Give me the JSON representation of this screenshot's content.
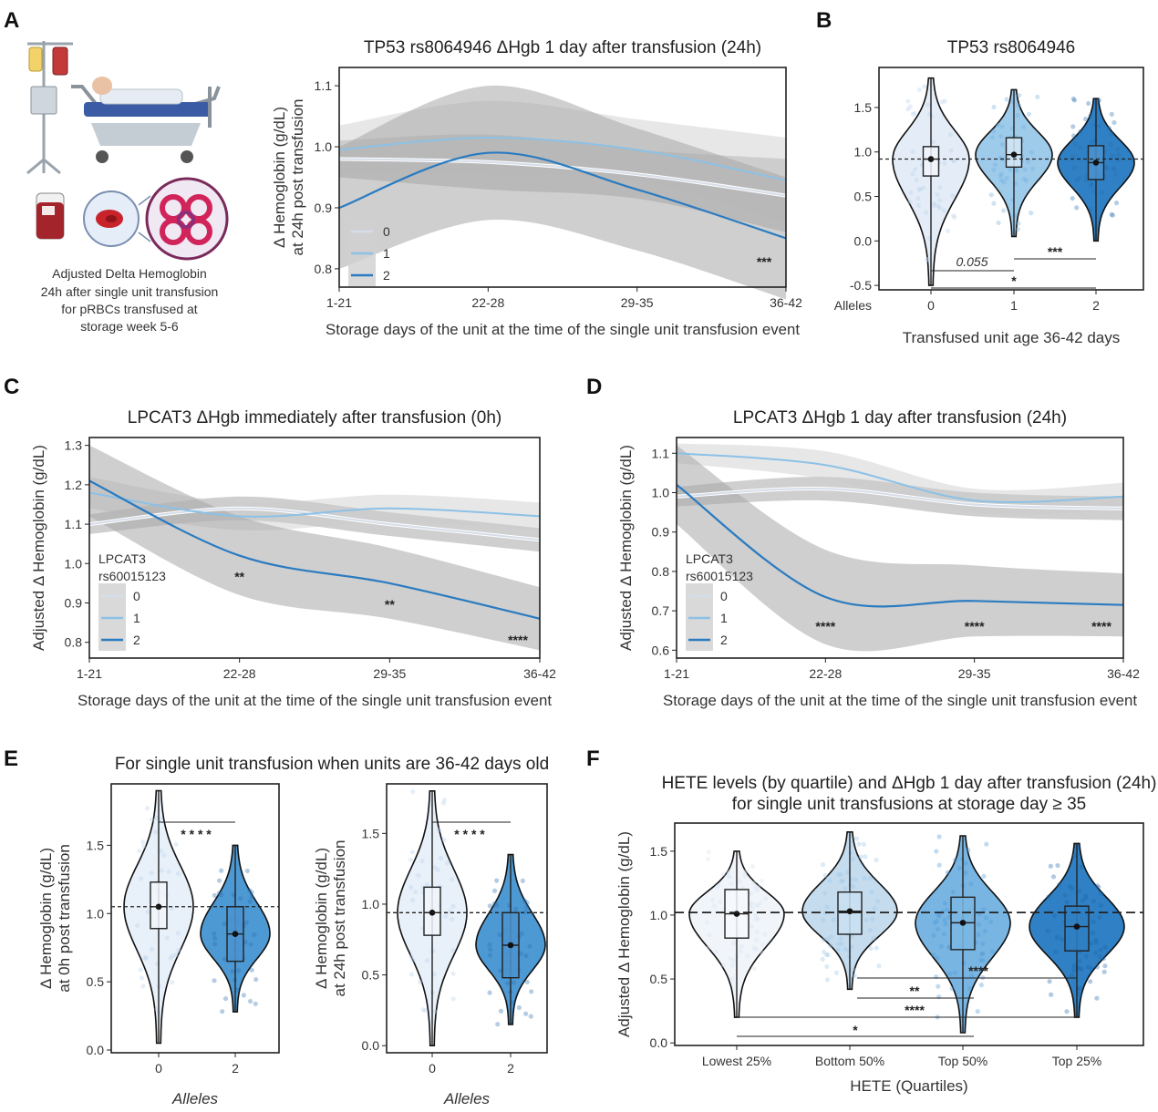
{
  "colors": {
    "allele0": "#d5dde8",
    "allele1": "#8cc1e6",
    "allele2": "#2a7bc0",
    "band": "#a8a8a8",
    "q1": "#eef3f9",
    "q2": "#c2dbef",
    "q3": "#6fb0e0",
    "q4": "#2a7bc0"
  },
  "panel_letters": {
    "A": "A",
    "B": "B",
    "C": "C",
    "D": "D",
    "E": "E",
    "F": "F"
  },
  "illustration": {
    "caption": [
      "Adjusted Delta Hemoglobin",
      "24h after single unit transfusion",
      "for pRBCs transfused at",
      "storage week 5-6"
    ],
    "icons": [
      "iv-bag-icon",
      "hospital-bed-icon",
      "blood-bag-icon",
      "red-blood-cell-icon"
    ]
  },
  "chart_data": [
    {
      "id": "A",
      "type": "line",
      "title": "TP53 rs8064946 ΔHgb 1 day after transfusion (24h)",
      "ylabel_lines": [
        "Δ Hemoglobin (g/dL)",
        "at 24h post transfusion"
      ],
      "xlabel": "Storage days of the unit at the time of the single unit transfusion event",
      "categories": [
        "1-21",
        "22-28",
        "29-35",
        "36-42"
      ],
      "ylim": [
        0.77,
        1.13
      ],
      "yticks": [
        "0.8",
        "0.9",
        "1.0",
        "1.1"
      ],
      "series": [
        {
          "name": "0",
          "values": [
            0.98,
            0.975,
            0.955,
            0.92
          ],
          "band": [
            0.03,
            0.045,
            0.04,
            0.06
          ]
        },
        {
          "name": "1",
          "values": [
            0.995,
            1.015,
            0.995,
            0.945
          ],
          "band": [
            0.04,
            0.06,
            0.05,
            0.07
          ]
        },
        {
          "name": "2",
          "values": [
            0.9,
            0.99,
            0.93,
            0.85
          ],
          "band": [
            0.1,
            0.11,
            0.1,
            0.1
          ]
        }
      ],
      "annotations": [
        {
          "text": "***",
          "at": "36-42"
        }
      ]
    },
    {
      "id": "B",
      "type": "violin",
      "title": "TP53 rs8064946",
      "xlabel": "Transfused unit age 36-42 days",
      "xprefix": "Alleles",
      "categories": [
        "0",
        "1",
        "2"
      ],
      "ylim": [
        -0.55,
        1.95
      ],
      "yticks": [
        "-0.5",
        "0.0",
        "0.5",
        "1.0",
        "1.5"
      ],
      "refline": 0.92,
      "groups": [
        {
          "name": "0",
          "median": 0.92,
          "q1": 0.73,
          "q3": 1.06,
          "lo": -0.5,
          "hi": 1.83
        },
        {
          "name": "1",
          "median": 0.97,
          "q1": 0.83,
          "q3": 1.16,
          "lo": 0.05,
          "hi": 1.7
        },
        {
          "name": "2",
          "median": 0.88,
          "q1": 0.69,
          "q3": 1.07,
          "lo": 0.0,
          "hi": 1.6
        }
      ],
      "significance": [
        {
          "text": "0.055",
          "from": "0",
          "to": "1"
        },
        {
          "text": "***",
          "from": "1",
          "to": "2"
        },
        {
          "text": "*",
          "from": "0",
          "to": "2"
        }
      ]
    },
    {
      "id": "C",
      "type": "line",
      "title": "LPCAT3 ΔHgb immediately after transfusion (0h)",
      "ylabel": "Adjusted Δ Hemoglobin (g/dL)",
      "xlabel": "Storage days of the unit at the time of the single unit transfusion event",
      "categories": [
        "1-21",
        "22-28",
        "29-35",
        "36-42"
      ],
      "ylim": [
        0.76,
        1.32
      ],
      "yticks": [
        "0.8",
        "0.9",
        "1.0",
        "1.1",
        "1.2",
        "1.3"
      ],
      "legend_title": [
        "LPCAT3",
        "rs60015123"
      ],
      "series": [
        {
          "name": "0",
          "values": [
            1.1,
            1.14,
            1.1,
            1.06
          ],
          "band": [
            0.025,
            0.03,
            0.03,
            0.03
          ]
        },
        {
          "name": "1",
          "values": [
            1.18,
            1.12,
            1.14,
            1.12
          ],
          "band": [
            0.04,
            0.035,
            0.035,
            0.035
          ]
        },
        {
          "name": "2",
          "values": [
            1.21,
            1.02,
            0.95,
            0.86
          ],
          "band": [
            0.09,
            0.1,
            0.09,
            0.08
          ]
        }
      ],
      "annotations": [
        {
          "text": "**",
          "at": "22-28"
        },
        {
          "text": "**",
          "at": "29-35"
        },
        {
          "text": "****",
          "at": "36-42"
        }
      ]
    },
    {
      "id": "D",
      "type": "line",
      "title": "LPCAT3 ΔHgb 1 day after transfusion (24h)",
      "ylabel": "Adjusted Δ Hemoglobin (g/dL)",
      "xlabel": "Storage days of the unit at the time of the single unit transfusion event",
      "categories": [
        "1-21",
        "22-28",
        "29-35",
        "36-42"
      ],
      "ylim": [
        0.58,
        1.14
      ],
      "yticks": [
        "0.6",
        "0.7",
        "0.8",
        "0.9",
        "1.0",
        "1.1"
      ],
      "legend_title": [
        "LPCAT3",
        "rs60015123"
      ],
      "series": [
        {
          "name": "0",
          "values": [
            0.99,
            1.01,
            0.97,
            0.96
          ],
          "band": [
            0.025,
            0.03,
            0.03,
            0.03
          ]
        },
        {
          "name": "1",
          "values": [
            1.1,
            1.07,
            0.98,
            0.99
          ],
          "band": [
            0.025,
            0.035,
            0.03,
            0.035
          ]
        },
        {
          "name": "2",
          "values": [
            1.02,
            0.735,
            0.725,
            0.715
          ],
          "band": [
            0.1,
            0.12,
            0.09,
            0.08
          ]
        }
      ],
      "annotations": [
        {
          "text": "****",
          "at": "22-28"
        },
        {
          "text": "****",
          "at": "29-35"
        },
        {
          "text": "****",
          "at": "36-42"
        }
      ]
    },
    {
      "id": "E1",
      "type": "violin",
      "title": "For single unit transfusion when units are 36-42 days old",
      "ylabel_lines": [
        "Δ Hemoglobin (g/dL)",
        "at 0h post transfusion"
      ],
      "xlabel": "Alleles",
      "categories": [
        "0",
        "2"
      ],
      "ylim": [
        -0.02,
        1.95
      ],
      "yticks": [
        "0.0",
        "0.5",
        "1.0",
        "1.5"
      ],
      "refline": 1.05,
      "groups": [
        {
          "name": "0",
          "median": 1.05,
          "q1": 0.89,
          "q3": 1.23,
          "lo": 0.05,
          "hi": 1.9
        },
        {
          "name": "2",
          "median": 0.85,
          "q1": 0.65,
          "q3": 1.05,
          "lo": 0.28,
          "hi": 1.5
        }
      ],
      "significance": [
        {
          "text": "* * * *",
          "from": "0",
          "to": "2"
        }
      ]
    },
    {
      "id": "E2",
      "type": "violin",
      "ylabel_lines": [
        "Δ Hemoglobin (g/dL)",
        "at 24h post transfusion"
      ],
      "xlabel": "Alleles",
      "categories": [
        "0",
        "2"
      ],
      "ylim": [
        -0.05,
        1.85
      ],
      "yticks": [
        "0.0",
        "0.5",
        "1.0",
        "1.5"
      ],
      "refline": 0.94,
      "groups": [
        {
          "name": "0",
          "median": 0.94,
          "q1": 0.78,
          "q3": 1.12,
          "lo": 0.0,
          "hi": 1.8
        },
        {
          "name": "2",
          "median": 0.71,
          "q1": 0.48,
          "q3": 0.94,
          "lo": 0.15,
          "hi": 1.35
        }
      ],
      "significance": [
        {
          "text": "* * * *",
          "from": "0",
          "to": "2"
        }
      ]
    },
    {
      "id": "F",
      "type": "violin",
      "title_lines": [
        "HETE levels (by quartile) and ΔHgb 1 day after transfusion (24h)",
        "for single unit transfusions at storage day ≥ 35"
      ],
      "ylabel": "Adjusted Δ Hemoglobin (g/dL)",
      "xlabel": "HETE (Quartiles)",
      "categories": [
        "Lowest 25%",
        "Bottom 50%",
        "Top 50%",
        "Top 25%"
      ],
      "ylim": [
        -0.02,
        1.72
      ],
      "yticks": [
        "0.0",
        "0.5",
        "1.0",
        "1.5"
      ],
      "refline": 1.02,
      "groups": [
        {
          "name": "Lowest 25%",
          "median": 1.01,
          "q1": 0.82,
          "q3": 1.2,
          "lo": 0.2,
          "hi": 1.5
        },
        {
          "name": "Bottom 50%",
          "median": 1.03,
          "q1": 0.85,
          "q3": 1.18,
          "lo": 0.42,
          "hi": 1.65
        },
        {
          "name": "Top 50%",
          "median": 0.94,
          "q1": 0.73,
          "q3": 1.14,
          "lo": 0.08,
          "hi": 1.62
        },
        {
          "name": "Top 25%",
          "median": 0.91,
          "q1": 0.72,
          "q3": 1.07,
          "lo": 0.2,
          "hi": 1.56
        }
      ],
      "significance": [
        {
          "text": "****",
          "from": "Bottom 50%",
          "to": "Top 25%"
        },
        {
          "text": "**",
          "from": "Bottom 50%",
          "to": "Top 50%"
        },
        {
          "text": "****",
          "from": "Lowest 25%",
          "to": "Top 25%"
        },
        {
          "text": "*",
          "from": "Lowest 25%",
          "to": "Top 50%"
        }
      ]
    }
  ]
}
